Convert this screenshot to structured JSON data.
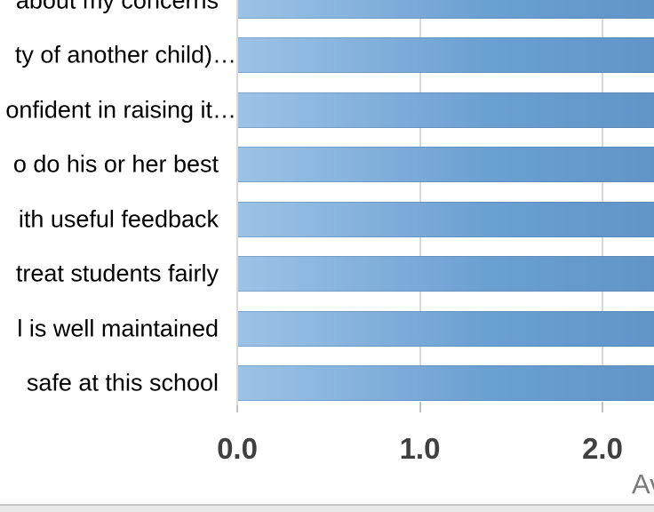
{
  "chart_data": {
    "type": "bar",
    "orientation": "horizontal",
    "categories": [
      {
        "label": "about my concerns",
        "ellipsis": false
      },
      {
        "label": "ty of another child)…",
        "ellipsis": true
      },
      {
        "label": "onfident in raising it…",
        "ellipsis": true
      },
      {
        "label": "o do his or her best",
        "ellipsis": false
      },
      {
        "label": "ith useful feedback",
        "ellipsis": false
      },
      {
        "label": "treat students fairly",
        "ellipsis": false
      },
      {
        "label": "l is well maintained",
        "ellipsis": false
      },
      {
        "label": "safe at this school",
        "ellipsis": false
      }
    ],
    "values": [
      2.28,
      2.28,
      2.28,
      2.28,
      2.28,
      2.28,
      2.28,
      2.28
    ],
    "values_note": "all 8 bars extend past the right crop edge of the screenshot; true values are not visible (>= 2.28)",
    "x_ticks": [
      0.0,
      1.0,
      2.0
    ],
    "x_tick_labels": [
      "0.0",
      "1.0",
      "2.0"
    ],
    "xlabel_visible_fragment": "Ave",
    "xlim_visible": [
      0.0,
      2.28
    ],
    "gridlines_x": [
      1.0,
      2.0
    ],
    "legend": "none",
    "category_labels_clipped_left": true,
    "bars_clipped_right": true
  },
  "colors": {
    "background": "#ffffff",
    "bar_gradient_left": "#9CC3E6",
    "bar_gradient_right": "#5E90C4",
    "gridline": "#d9d9d9",
    "axis_line": "#d9d9d9",
    "tick_mark": "#c2c2c2",
    "tick_label": "#404040",
    "category_label": "#000000",
    "axis_title": "#7a7a7a",
    "footer_line": "#c6c6c6",
    "footer_strip": "#e9e9e9"
  }
}
